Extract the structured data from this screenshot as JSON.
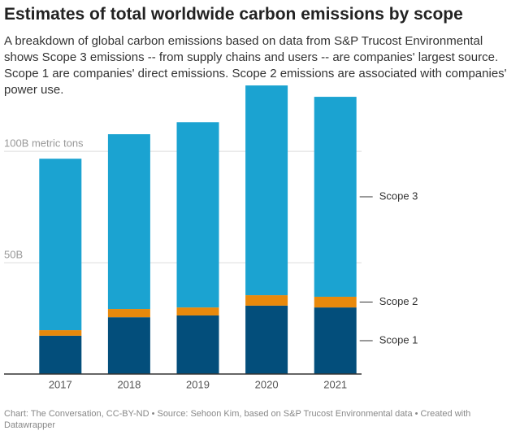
{
  "chart_data": {
    "type": "stacked_bar",
    "title": "Estimates of total worldwide carbon emissions by scope",
    "subtitle": "A breakdown of global carbon emissions based on data from S&P Trucost Environmental shows Scope 3 emissions -- from supply chains and users -- are companies' largest source. Scope 1 are companies' direct emissions. Scope 2 emissions are associated with companies' power use.",
    "note": "Chart: The Conversation, CC-BY-ND • Source: Sehoon Kim, based on S&P Trucost Environmental data • Created with Datawrapper",
    "categories": [
      "2017",
      "2018",
      "2019",
      "2020",
      "2021"
    ],
    "series": [
      {
        "name": "Scope 1",
        "color": "#034e7b",
        "values": [
          17.2,
          25.5,
          26.3,
          30.7,
          29.9
        ]
      },
      {
        "name": "Scope 2",
        "color": "#e8890c",
        "values": [
          2.5,
          3.7,
          3.6,
          4.7,
          4.8
        ]
      },
      {
        "name": "Scope 3",
        "color": "#1ba3d1",
        "values": [
          77,
          78.5,
          83.2,
          94.2,
          89.8
        ]
      }
    ],
    "ylim": [
      0,
      130
    ],
    "yticks": [
      {
        "value": 50,
        "label": "50B"
      },
      {
        "value": 100,
        "label": "100B metric tons"
      }
    ],
    "grid": true
  }
}
